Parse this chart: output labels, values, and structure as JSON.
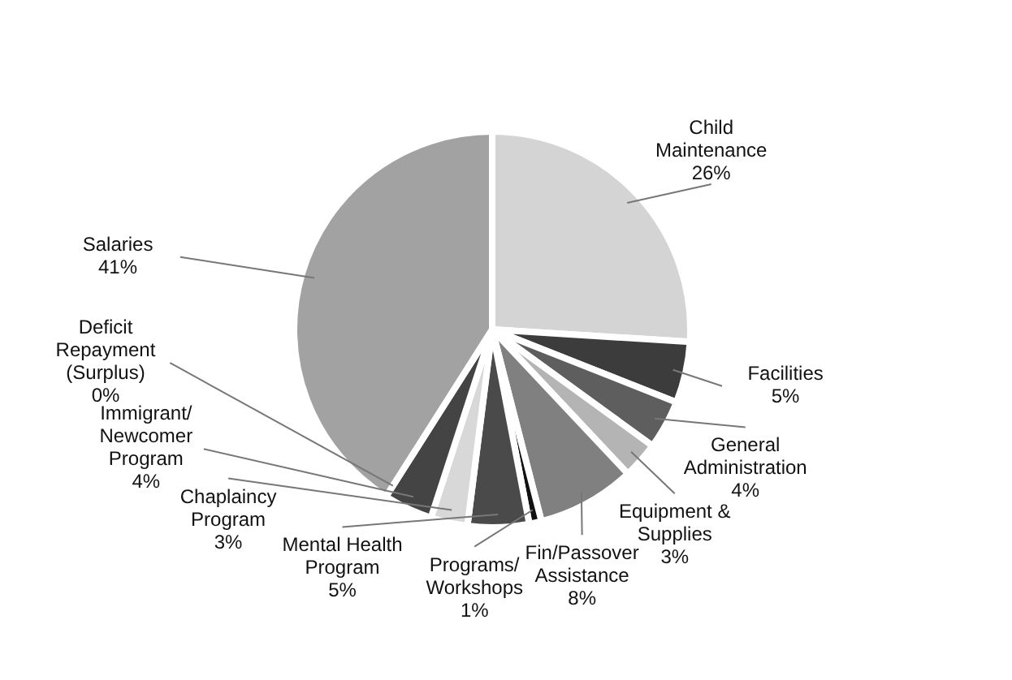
{
  "chart_data": {
    "type": "pie",
    "categories": [
      "Child\nMaintenance",
      "Facilities",
      "General\nAdministration",
      "Equipment &\nSupplies",
      "Fin/Passover\nAssistance",
      "Programs/\nWorkshops",
      "Mental Health\nProgram",
      "Chaplaincy\nProgram",
      "Immigrant/\nNewcomer\nProgram",
      "Deficit\nRepayment\n(Surplus)",
      "Salaries"
    ],
    "values": [
      26,
      5,
      4,
      3,
      8,
      1,
      5,
      3,
      4,
      0,
      41
    ],
    "colors": [
      "#d4d4d4",
      "#3c3c3c",
      "#5e5e5e",
      "#b4b4b4",
      "#808080",
      "#111111",
      "#4a4a4a",
      "#d8d8d8",
      "#444444",
      "#ffffff",
      "#a2a2a2"
    ],
    "value_labels": [
      "26%",
      "5%",
      "4%",
      "3%",
      "8%",
      "1%",
      "5%",
      "3%",
      "4%",
      "0%",
      "41%"
    ],
    "legend": false
  }
}
